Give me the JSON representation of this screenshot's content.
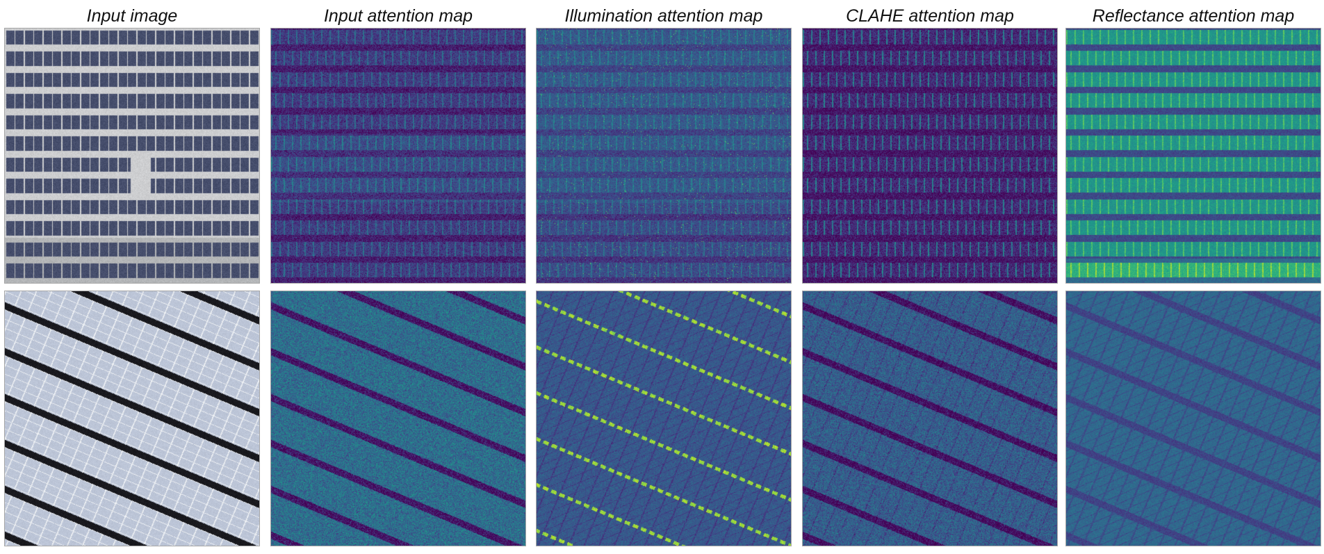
{
  "columns": [
    {
      "title": "Input image",
      "kind": "photo"
    },
    {
      "title": "Input attention map",
      "kind": "attention"
    },
    {
      "title": "Illumination attention map",
      "kind": "attention"
    },
    {
      "title": "CLAHE attention map",
      "kind": "attention"
    },
    {
      "title": "Reflectance attention map",
      "kind": "attention"
    }
  ],
  "rows": [
    {
      "scene": "horizontal-solar-panels"
    },
    {
      "scene": "diagonal-solar-panels"
    }
  ],
  "colors": {
    "viridis_dark": "#440154",
    "viridis_blue": "#31688e",
    "viridis_teal": "#21918c",
    "viridis_green": "#5ec962",
    "viridis_yellow": "#c8e020",
    "photo_gray": "#c9cbcf",
    "panel_blue": "#4c5676",
    "panel_light": "#c5cfe0"
  }
}
